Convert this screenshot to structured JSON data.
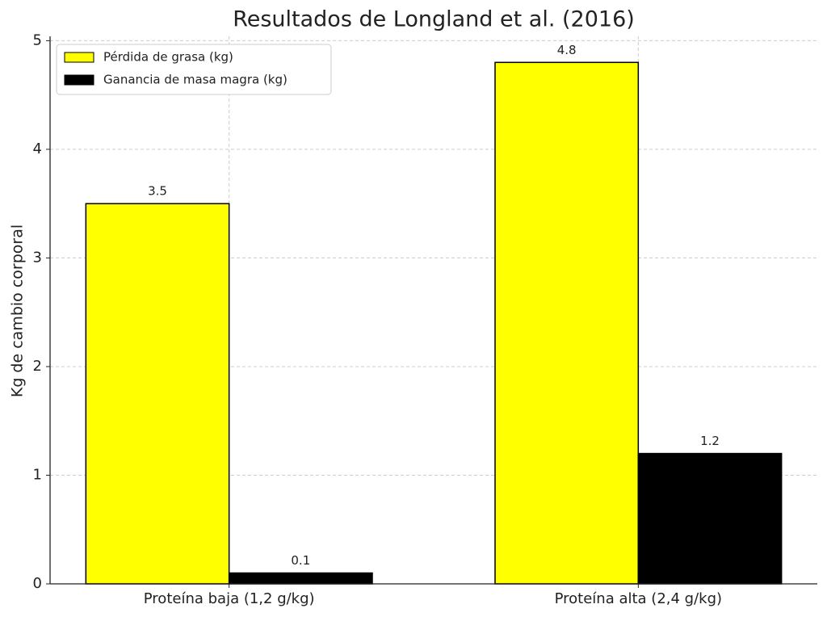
{
  "chart_data": {
    "type": "bar",
    "title": "Resultados de Longland et al. (2016)",
    "y_label": "Kg de cambio corporal",
    "categories": [
      "Proteína baja (1,2 g/kg)",
      "Proteína alta (2,4 g/kg)"
    ],
    "series": [
      {
        "name": "Pérdida de grasa (kg)",
        "color": "#ffff00",
        "values": [
          3.5,
          4.8
        ]
      },
      {
        "name": "Ganancia de masa magra (kg)",
        "color": "#000000",
        "values": [
          0.1,
          1.2
        ]
      }
    ],
    "ylim": [
      0,
      5.04
    ],
    "yticks": [
      0,
      1,
      2,
      3,
      4,
      5
    ],
    "grid": true,
    "legend": "upper left"
  }
}
